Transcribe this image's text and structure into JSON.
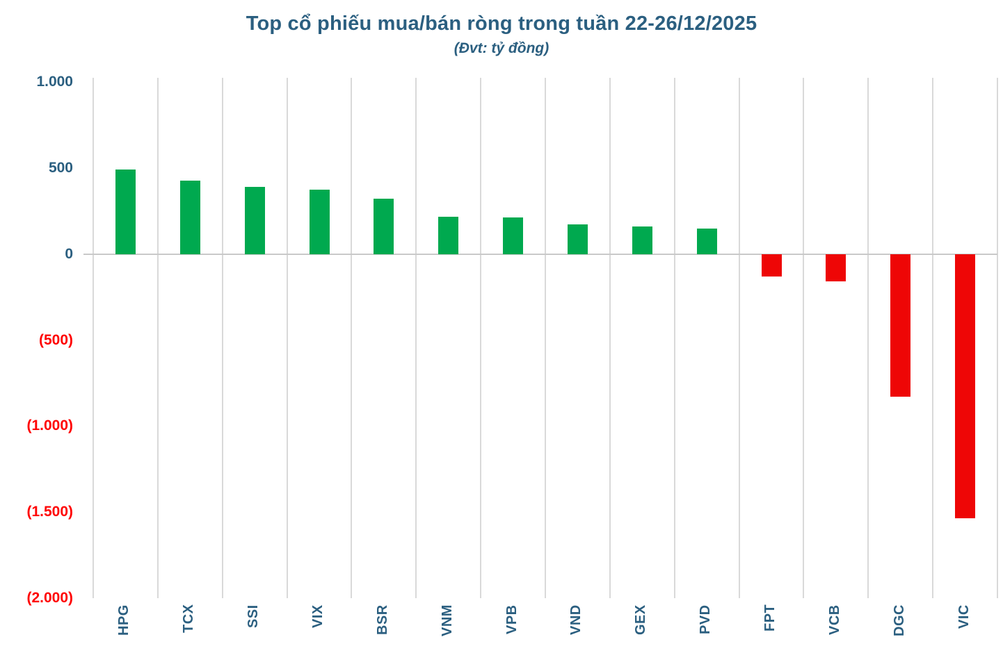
{
  "title": "Top cổ phiếu mua/bán ròng trong tuần 22-26/12/2025",
  "subtitle": "(Đvt: tỷ đồng)",
  "colors": {
    "title_text": "#2b5f80",
    "axis_label_positive": "#2b5f80",
    "axis_label_negative": "#ff0000",
    "bar_positive": "#00a94f",
    "bar_negative": "#ee0606",
    "gridline": "#d9d9d9",
    "zero_line": "#c9c9c9",
    "background": "#ffffff"
  },
  "y_axis": {
    "ticks": [
      {
        "label": "1.000",
        "value": 1000
      },
      {
        "label": "500",
        "value": 500
      },
      {
        "label": "0",
        "value": 0
      },
      {
        "label": "(500)",
        "value": -500
      },
      {
        "label": "(1.000)",
        "value": -1000
      },
      {
        "label": "(1.500)",
        "value": -1500
      },
      {
        "label": "(2.000)",
        "value": -2000
      }
    ]
  },
  "chart_data": {
    "type": "bar",
    "title": "Top cổ phiếu mua/bán ròng trong tuần 22-26/12/2025",
    "subtitle": "(Đvt: tỷ đồng)",
    "unit": "tỷ đồng",
    "categories": [
      "HPG",
      "TCX",
      "SSI",
      "VIX",
      "BSR",
      "VNM",
      "VPB",
      "VND",
      "GEX",
      "PVD",
      "FPT",
      "VCB",
      "DGC",
      "VIC"
    ],
    "values": [
      490,
      427,
      390,
      374,
      322,
      218,
      213,
      172,
      161,
      149,
      -130,
      -157,
      -830,
      -1535
    ],
    "xlabel": "",
    "ylabel": "",
    "ylim": [
      -2000,
      1000
    ],
    "y_tick_step": 500,
    "grid": "vertical-only",
    "legend": "none",
    "bar_color_rule": "green = net buy (positive), red = net sell (negative)"
  }
}
